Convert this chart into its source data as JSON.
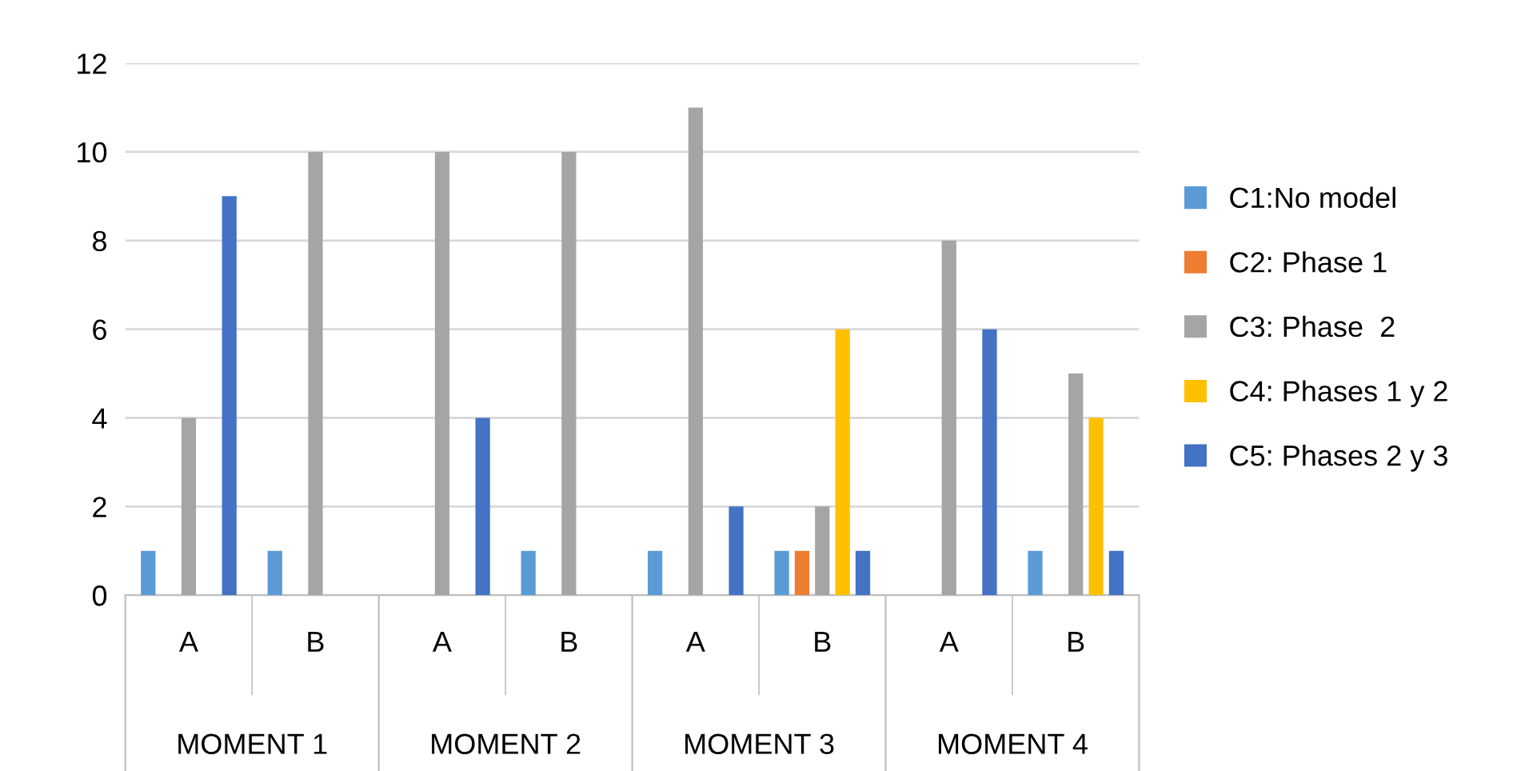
{
  "chart_data": {
    "type": "bar",
    "categories": [
      "A",
      "B",
      "A",
      "B",
      "A",
      "B",
      "A",
      "B"
    ],
    "series": [
      {
        "name": "C1:No model",
        "color": "#5b9bd5",
        "values": [
          1,
          1,
          0,
          1,
          1,
          1,
          0,
          1
        ]
      },
      {
        "name": "C2: Phase 1",
        "color": "#ed7d31",
        "values": [
          0,
          0,
          0,
          0,
          0,
          1,
          0,
          0
        ]
      },
      {
        "name": "C3: Phase  2",
        "color": "#a5a5a5",
        "values": [
          4,
          10,
          10,
          10,
          11,
          2,
          8,
          5
        ]
      },
      {
        "name": "C4: Phases 1 y 2",
        "color": "#ffc000",
        "values": [
          0,
          0,
          0,
          0,
          0,
          6,
          0,
          4
        ]
      },
      {
        "name": "C5: Phases 2 y 3",
        "color": "#4472c4",
        "values": [
          9,
          0,
          4,
          0,
          2,
          1,
          6,
          1
        ]
      }
    ],
    "annotations": [
      "MOMENT 1",
      "MOMENT 2",
      "MOMENT 3",
      "MOMENT 4"
    ],
    "ylim": [
      0,
      12
    ],
    "yticks": [
      0,
      2,
      4,
      6,
      8,
      10,
      12
    ],
    "grid": "y",
    "legend": "right"
  }
}
